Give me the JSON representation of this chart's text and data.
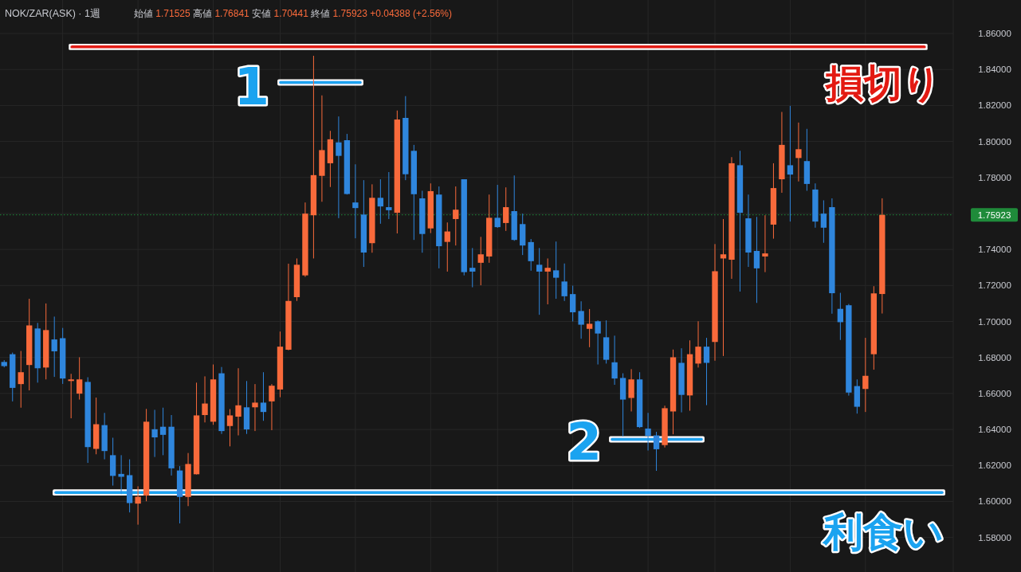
{
  "chart_data": {
    "type": "candlestick",
    "title": "NOK/ZAR(ASK) · 1週",
    "subtitle": "始値 1.71525 高値 1.76841 安値 1.70441 終値 1.75923 +0.04388 (+2.56%)",
    "categories": [
      null,
      null,
      null,
      null,
      null,
      null,
      null,
      null,
      null,
      null,
      null,
      null,
      null,
      null,
      null,
      null,
      null,
      null,
      null,
      null,
      null,
      null,
      null,
      null,
      null,
      null,
      null,
      null,
      null,
      null,
      null,
      null,
      null,
      null,
      null,
      null,
      null,
      null,
      null,
      null,
      null,
      null,
      null,
      null,
      null,
      null,
      null,
      null,
      null,
      null,
      null,
      null,
      null,
      null,
      null,
      null,
      null,
      null,
      null,
      null,
      null,
      null,
      null,
      null,
      null,
      null,
      null,
      null,
      null,
      null,
      null,
      null,
      null,
      null,
      null,
      null,
      null,
      null,
      null,
      null,
      null,
      null,
      null,
      null,
      null,
      null,
      null,
      null,
      null,
      null,
      null,
      null,
      null,
      null,
      null,
      null,
      null,
      null,
      null,
      null,
      null,
      null,
      null,
      null,
      null,
      null,
      null,
      null,
      null,
      null,
      null,
      null,
      null,
      null
    ],
    "ohlc": [
      [
        1.6775,
        1.6785,
        1.6745,
        1.6752
      ],
      [
        1.6818,
        1.6827,
        1.6556,
        1.6631
      ],
      [
        1.6652,
        1.6836,
        1.6521,
        1.6718
      ],
      [
        1.6758,
        1.7126,
        1.6617,
        1.6978
      ],
      [
        1.6961,
        1.6992,
        1.666,
        1.674
      ],
      [
        1.6744,
        1.71,
        1.6678,
        1.6952
      ],
      [
        1.69,
        1.7027,
        1.6692,
        1.6834
      ],
      [
        1.6907,
        1.6964,
        1.6653,
        1.6683
      ],
      [
        1.6669,
        1.6709,
        1.6462,
        1.6678
      ],
      [
        1.6599,
        1.6801,
        1.6566,
        1.6678
      ],
      [
        1.6664,
        1.669,
        1.6214,
        1.6302
      ],
      [
        1.6292,
        1.6577,
        1.6262,
        1.6429
      ],
      [
        1.6424,
        1.6492,
        1.6234,
        1.628
      ],
      [
        1.6257,
        1.6354,
        1.6088,
        1.6142
      ],
      [
        1.6153,
        1.6257,
        1.604,
        1.6137
      ],
      [
        1.6146,
        1.6234,
        1.5939,
        1.5991
      ],
      [
        1.5988,
        1.6084,
        1.5871,
        1.6026
      ],
      [
        1.6033,
        1.6514,
        1.6001,
        1.6443
      ],
      [
        1.6401,
        1.6509,
        1.6247,
        1.6356
      ],
      [
        1.6415,
        1.6521,
        1.6257,
        1.637
      ],
      [
        1.6415,
        1.648,
        1.6144,
        1.6184
      ],
      [
        1.6172,
        1.6196,
        1.5878,
        1.6025
      ],
      [
        1.6025,
        1.6269,
        1.5974,
        1.6208
      ],
      [
        1.6151,
        1.666,
        1.615,
        1.6478
      ],
      [
        1.648,
        1.6695,
        1.6439,
        1.6544
      ],
      [
        1.6443,
        1.6761,
        1.6426,
        1.6678
      ],
      [
        1.6712,
        1.6747,
        1.6375,
        1.6391
      ],
      [
        1.6419,
        1.6513,
        1.6306,
        1.6478
      ],
      [
        1.6471,
        1.674,
        1.6367,
        1.6534
      ],
      [
        1.6523,
        1.6669,
        1.6375,
        1.64
      ],
      [
        1.6523,
        1.6652,
        1.6391,
        1.6549
      ],
      [
        1.6549,
        1.6718,
        1.6448,
        1.6497
      ],
      [
        1.6556,
        1.6652,
        1.6396,
        1.6643
      ],
      [
        1.6622,
        1.6944,
        1.6579,
        1.686
      ],
      [
        1.6843,
        1.7321,
        1.684,
        1.7114
      ],
      [
        1.7135,
        1.735,
        1.7114,
        1.7315
      ],
      [
        1.7256,
        1.7661,
        1.7248,
        1.7599
      ],
      [
        1.759,
        1.8476,
        1.735,
        1.7813
      ],
      [
        1.7809,
        1.8256,
        1.7665,
        1.7952
      ],
      [
        1.7879,
        1.8059,
        1.7747,
        1.8012
      ],
      [
        1.7995,
        1.8139,
        1.7574,
        1.792
      ],
      [
        1.8007,
        1.8042,
        1.7705,
        1.7708
      ],
      [
        1.7661,
        1.7873,
        1.7462,
        1.763
      ],
      [
        1.7594,
        1.7785,
        1.7303,
        1.7383
      ],
      [
        1.7435,
        1.7762,
        1.7382,
        1.7687
      ],
      [
        1.7687,
        1.779,
        1.7543,
        1.7639
      ],
      [
        1.7635,
        1.783,
        1.7569,
        1.7618
      ],
      [
        1.7604,
        1.8172,
        1.7489,
        1.8122
      ],
      [
        1.8131,
        1.8252,
        1.7785,
        1.7818
      ],
      [
        1.7948,
        1.7981,
        1.7453,
        1.7707
      ],
      [
        1.7684,
        1.7726,
        1.7382,
        1.7486
      ],
      [
        1.7517,
        1.7767,
        1.7491,
        1.7724
      ],
      [
        1.7705,
        1.775,
        1.7295,
        1.7418
      ],
      [
        1.7442,
        1.755,
        1.7277,
        1.75
      ],
      [
        1.7569,
        1.775,
        1.7422,
        1.7621
      ],
      [
        1.779,
        1.779,
        1.7256,
        1.7274
      ],
      [
        1.7298,
        1.7408,
        1.719,
        1.7277
      ],
      [
        1.7326,
        1.747,
        1.7201,
        1.7373
      ],
      [
        1.7361,
        1.7705,
        1.7326,
        1.7576
      ],
      [
        1.7576,
        1.7759,
        1.752,
        1.7524
      ],
      [
        1.7547,
        1.7745,
        1.7503,
        1.7635
      ],
      [
        1.7613,
        1.7811,
        1.7448,
        1.7453
      ],
      [
        1.7541,
        1.7599,
        1.7369,
        1.7422
      ],
      [
        1.7441,
        1.7458,
        1.7282,
        1.7335
      ],
      [
        1.7315,
        1.7408,
        1.7037,
        1.7277
      ],
      [
        1.7277,
        1.735,
        1.7095,
        1.7298
      ],
      [
        1.7284,
        1.7444,
        1.7126,
        1.7243
      ],
      [
        1.7222,
        1.7322,
        1.7114,
        1.714
      ],
      [
        1.7152,
        1.7199,
        1.7,
        1.7051
      ],
      [
        1.7058,
        1.7112,
        1.6904,
        1.6982
      ],
      [
        1.6959,
        1.7069,
        1.6857,
        1.6987
      ],
      [
        1.7001,
        1.7006,
        1.6761,
        1.6933
      ],
      [
        1.6912,
        1.7006,
        1.6766,
        1.6787
      ],
      [
        1.6773,
        1.6921,
        1.6648,
        1.6683
      ],
      [
        1.6686,
        1.6712,
        1.6361,
        1.6566
      ],
      [
        1.6575,
        1.6735,
        1.65,
        1.6678
      ],
      [
        1.6678,
        1.6718,
        1.6408,
        1.6413
      ],
      [
        1.6405,
        1.6492,
        1.6283,
        1.6365
      ],
      [
        1.6367,
        1.6387,
        1.617,
        1.629
      ],
      [
        1.6313,
        1.6532,
        1.63,
        1.6518
      ],
      [
        1.65,
        1.6844,
        1.6373,
        1.6801
      ],
      [
        1.677,
        1.6851,
        1.6495,
        1.6592
      ],
      [
        1.6589,
        1.6895,
        1.6504,
        1.6818
      ],
      [
        1.6766,
        1.7001,
        1.6744,
        1.686
      ],
      [
        1.686,
        1.6909,
        1.6535,
        1.677
      ],
      [
        1.6886,
        1.743,
        1.6782,
        1.7279
      ],
      [
        1.735,
        1.7569,
        1.6808,
        1.7373
      ],
      [
        1.7343,
        1.7913,
        1.7237,
        1.7879
      ],
      [
        1.7868,
        1.7948,
        1.7166,
        1.7604
      ],
      [
        1.7573,
        1.7705,
        1.7303,
        1.7383
      ],
      [
        1.7392,
        1.7581,
        1.7103,
        1.7295
      ],
      [
        1.7361,
        1.759,
        1.7274,
        1.7378
      ],
      [
        1.7538,
        1.7879,
        1.746,
        1.7741
      ],
      [
        1.779,
        1.8164,
        1.7715,
        1.7981
      ],
      [
        1.7868,
        1.8198,
        1.7555,
        1.7816
      ],
      [
        1.7908,
        1.8105,
        1.7778,
        1.7957
      ],
      [
        1.7891,
        1.807,
        1.7726,
        1.7764
      ],
      [
        1.7733,
        1.7767,
        1.7521,
        1.7555
      ],
      [
        1.7599,
        1.7673,
        1.7437,
        1.7521
      ],
      [
        1.7635,
        1.7684,
        1.7043,
        1.7157
      ],
      [
        1.707,
        1.7159,
        1.6897,
        1.6996
      ],
      [
        1.709,
        1.7097,
        1.6588,
        1.6605
      ],
      [
        1.6641,
        1.6678,
        1.6488,
        1.6526
      ],
      [
        1.6625,
        1.6909,
        1.6497,
        1.6698
      ],
      [
        1.6818,
        1.7196,
        1.6732,
        1.7156
      ],
      [
        1.71525,
        1.76841,
        1.70441,
        1.75923
      ],
      null,
      null,
      null,
      null,
      null,
      null,
      null,
      null
    ],
    "colors": [
      "#2f86dd",
      "#2f86dd",
      "#f96a3b",
      "#f96a3b",
      "#2f86dd",
      "#f96a3b",
      "#2f86dd",
      "#2f86dd",
      "#f96a3b",
      "#f96a3b",
      "#2f86dd",
      "#f96a3b",
      "#2f86dd",
      "#2f86dd",
      "#2f86dd",
      "#2f86dd",
      "#f96a3b",
      "#f96a3b",
      "#2f86dd",
      "#2f86dd",
      "#2f86dd",
      "#2f86dd",
      "#f96a3b",
      "#f96a3b",
      "#f96a3b",
      "#f96a3b",
      "#2f86dd",
      "#f96a3b",
      "#f96a3b",
      "#2f86dd",
      "#f96a3b",
      "#2f86dd",
      "#f96a3b",
      "#f96a3b",
      "#f96a3b",
      "#f96a3b",
      "#f96a3b",
      "#f96a3b",
      "#f96a3b",
      "#f96a3b",
      "#2f86dd",
      "#2f86dd",
      "#2f86dd",
      "#2f86dd",
      "#f96a3b",
      "#2f86dd",
      "#2f86dd",
      "#f96a3b",
      "#2f86dd",
      "#2f86dd",
      "#2f86dd",
      "#f96a3b",
      "#2f86dd",
      "#f96a3b",
      "#f96a3b",
      "#2f86dd",
      "#2f86dd",
      "#f96a3b",
      "#f96a3b",
      "#2f86dd",
      "#f96a3b",
      "#2f86dd",
      "#2f86dd",
      "#2f86dd",
      "#2f86dd",
      "#f96a3b",
      "#2f86dd",
      "#2f86dd",
      "#2f86dd",
      "#2f86dd",
      "#f96a3b",
      "#2f86dd",
      "#2f86dd",
      "#2f86dd",
      "#2f86dd",
      "#f96a3b",
      "#2f86dd",
      "#2f86dd",
      "#2f86dd",
      "#f96a3b",
      "#f96a3b",
      "#2f86dd",
      "#f96a3b",
      "#f96a3b",
      "#2f86dd",
      "#f96a3b",
      "#f96a3b",
      "#f96a3b",
      "#2f86dd",
      "#2f86dd",
      "#2f86dd",
      "#f96a3b",
      "#f96a3b",
      "#f96a3b",
      "#2f86dd",
      "#f96a3b",
      "#2f86dd",
      "#2f86dd",
      "#2f86dd",
      "#2f86dd",
      "#2f86dd",
      "#2f86dd",
      "#2f86dd",
      "#f96a3b",
      "#f96a3b",
      "#f96a3b",
      null,
      null,
      null,
      null,
      null,
      null,
      null,
      null
    ],
    "ylim": [
      1.5608,
      1.8786
    ],
    "yticks": [
      {
        "value": 1.58,
        "label": "1.58000"
      },
      {
        "value": 1.6,
        "label": "1.60000"
      },
      {
        "value": 1.62,
        "label": "1.62000"
      },
      {
        "value": 1.64,
        "label": "1.64000"
      },
      {
        "value": 1.66,
        "label": "1.66000"
      },
      {
        "value": 1.68,
        "label": "1.68000"
      },
      {
        "value": 1.7,
        "label": "1.70000"
      },
      {
        "value": 1.72,
        "label": "1.72000"
      },
      {
        "value": 1.74,
        "label": "1.74000"
      },
      {
        "value": 1.76,
        "label": null
      },
      {
        "value": 1.78,
        "label": "1.78000"
      },
      {
        "value": 1.8,
        "label": "1.80000"
      },
      {
        "value": 1.82,
        "label": "1.82000"
      },
      {
        "value": 1.84,
        "label": "1.84000"
      },
      {
        "value": 1.86,
        "label": "1.86000"
      }
    ],
    "grid": true,
    "tick_labels": "y",
    "ref_lines": [
      {
        "axis": "y",
        "value": 1.8525,
        "label": "損切り",
        "color": "#e31a12"
      },
      {
        "axis": "y",
        "value": 1.8328,
        "color": "#1aa3f0"
      },
      {
        "axis": "y",
        "value": 1.6345,
        "color": "#1aa3f0"
      },
      {
        "axis": "y",
        "value": 1.605,
        "label": "利食い",
        "color": "#1aa3f0"
      },
      {
        "axis": "y",
        "value": 1.75923,
        "label": "1.75923",
        "color": "#1f8b3a",
        "line_style": "dotted"
      }
    ],
    "annotations": [
      "1",
      "2"
    ]
  }
}
